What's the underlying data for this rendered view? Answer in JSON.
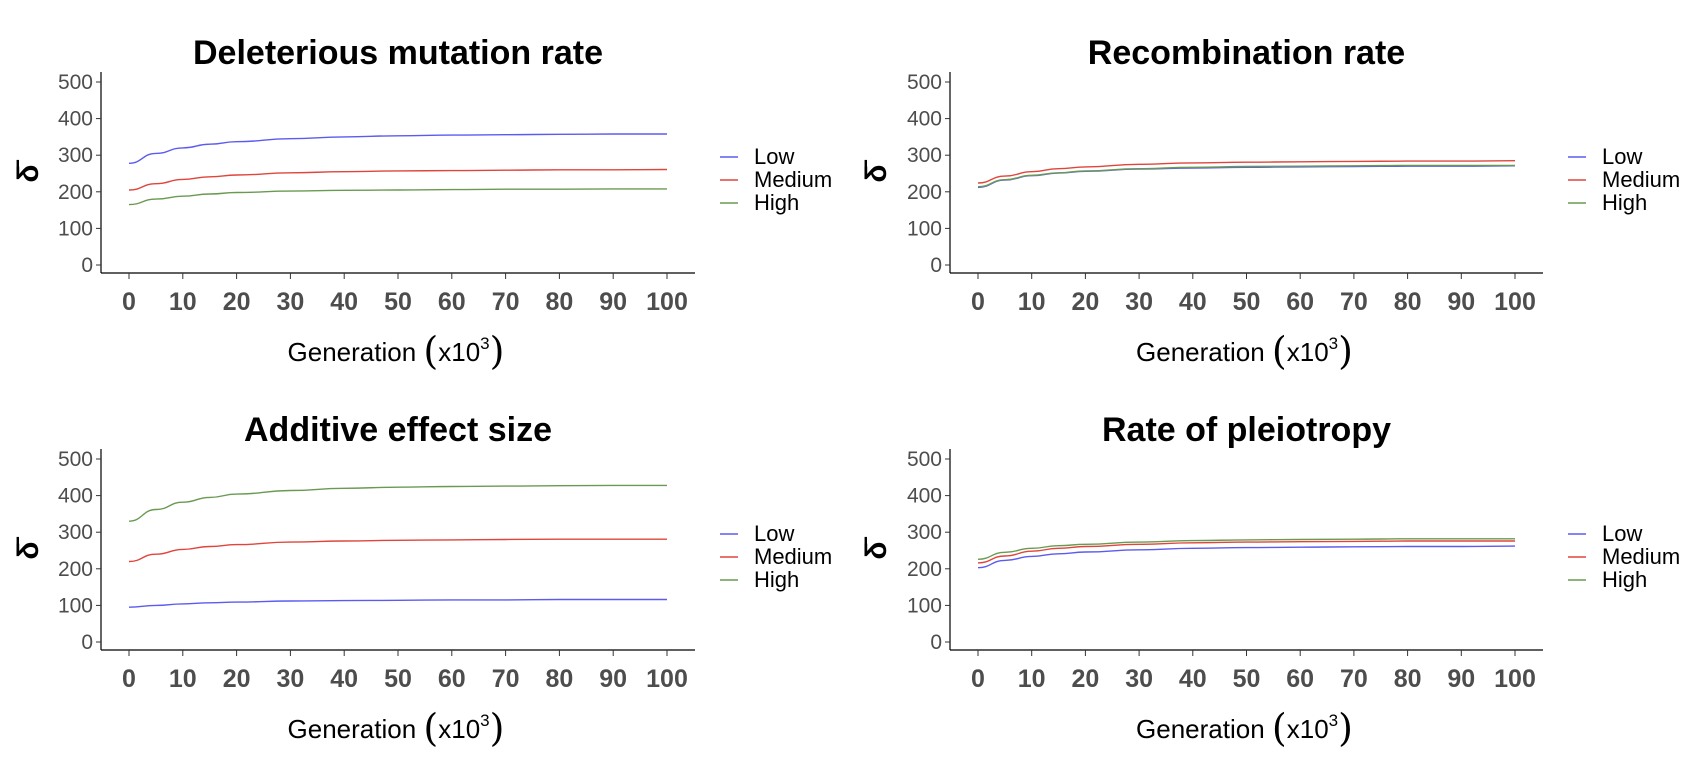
{
  "chart_data": [
    {
      "type": "line",
      "title": "Deleterious mutation rate",
      "xlabel": "Generation",
      "xlabel_unit": "x10",
      "xlabel_exp": "3",
      "ylabel": "δ̄",
      "xlim": [
        0,
        100
      ],
      "ylim": [
        0,
        500
      ],
      "x_ticks": [
        "0",
        "10",
        "20",
        "30",
        "40",
        "50",
        "60",
        "70",
        "80",
        "90",
        "100"
      ],
      "y_ticks": [
        "0",
        "100",
        "200",
        "300",
        "400",
        "500"
      ],
      "x": [
        0,
        5,
        10,
        15,
        20,
        30,
        40,
        50,
        60,
        70,
        80,
        90,
        100
      ],
      "legend_position": "right",
      "series": [
        {
          "name": "Low",
          "color": "#5b5bf0",
          "values": [
            278,
            305,
            320,
            330,
            337,
            345,
            350,
            353,
            355,
            356,
            357,
            358,
            358
          ]
        },
        {
          "name": "Medium",
          "color": "#e0453c",
          "values": [
            205,
            222,
            234,
            241,
            246,
            252,
            255,
            257,
            258,
            259,
            260,
            260,
            261
          ]
        },
        {
          "name": "High",
          "color": "#6a9a52",
          "values": [
            165,
            180,
            188,
            194,
            198,
            202,
            204,
            205,
            206,
            207,
            207,
            208,
            208
          ]
        }
      ]
    },
    {
      "type": "line",
      "title": "Recombination rate",
      "xlabel": "Generation",
      "xlabel_unit": "x10",
      "xlabel_exp": "3",
      "ylabel": "δ̄",
      "xlim": [
        0,
        100
      ],
      "ylim": [
        0,
        500
      ],
      "x_ticks": [
        "0",
        "10",
        "20",
        "30",
        "40",
        "50",
        "60",
        "70",
        "80",
        "90",
        "100"
      ],
      "y_ticks": [
        "0",
        "100",
        "200",
        "300",
        "400",
        "500"
      ],
      "x": [
        0,
        5,
        10,
        15,
        20,
        30,
        40,
        50,
        60,
        70,
        80,
        90,
        100
      ],
      "legend_position": "right",
      "series": [
        {
          "name": "Low",
          "color": "#5b5bf0",
          "values": [
            212,
            232,
            244,
            251,
            256,
            262,
            265,
            267,
            268,
            269,
            270,
            270,
            271
          ]
        },
        {
          "name": "Medium",
          "color": "#e0453c",
          "values": [
            224,
            243,
            255,
            263,
            268,
            275,
            279,
            281,
            282,
            283,
            284,
            284,
            285
          ]
        },
        {
          "name": "High",
          "color": "#6a9a52",
          "values": [
            214,
            233,
            245,
            252,
            257,
            263,
            267,
            269,
            270,
            271,
            272,
            272,
            272
          ]
        }
      ]
    },
    {
      "type": "line",
      "title": "Additive effect size",
      "xlabel": "Generation",
      "xlabel_unit": "x10",
      "xlabel_exp": "3",
      "ylabel": "δ̄",
      "xlim": [
        0,
        100
      ],
      "ylim": [
        0,
        500
      ],
      "x_ticks": [
        "0",
        "10",
        "20",
        "30",
        "40",
        "50",
        "60",
        "70",
        "80",
        "90",
        "100"
      ],
      "y_ticks": [
        "0",
        "100",
        "200",
        "300",
        "400",
        "500"
      ],
      "x": [
        0,
        5,
        10,
        15,
        20,
        30,
        40,
        50,
        60,
        70,
        80,
        90,
        100
      ],
      "legend_position": "right",
      "series": [
        {
          "name": "Low",
          "color": "#5b5bf0",
          "values": [
            95,
            100,
            104,
            107,
            109,
            112,
            113,
            114,
            115,
            115,
            116,
            116,
            116
          ]
        },
        {
          "name": "Medium",
          "color": "#e0453c",
          "values": [
            220,
            240,
            253,
            261,
            266,
            273,
            276,
            278,
            279,
            280,
            281,
            281,
            281
          ]
        },
        {
          "name": "High",
          "color": "#6a9a52",
          "values": [
            330,
            362,
            382,
            395,
            404,
            414,
            420,
            423,
            425,
            426,
            427,
            428,
            428
          ]
        }
      ]
    },
    {
      "type": "line",
      "title": "Rate of pleiotropy",
      "xlabel": "Generation",
      "xlabel_unit": "x10",
      "xlabel_exp": "3",
      "ylabel": "δ̄",
      "xlim": [
        0,
        100
      ],
      "ylim": [
        0,
        500
      ],
      "x_ticks": [
        "0",
        "10",
        "20",
        "30",
        "40",
        "50",
        "60",
        "70",
        "80",
        "90",
        "100"
      ],
      "y_ticks": [
        "0",
        "100",
        "200",
        "300",
        "400",
        "500"
      ],
      "x": [
        0,
        5,
        10,
        15,
        20,
        30,
        40,
        50,
        60,
        70,
        80,
        90,
        100
      ],
      "legend_position": "right",
      "series": [
        {
          "name": "Low",
          "color": "#5b5bf0",
          "values": [
            203,
            223,
            234,
            241,
            246,
            252,
            256,
            258,
            259,
            260,
            261,
            261,
            262
          ]
        },
        {
          "name": "Medium",
          "color": "#e0453c",
          "values": [
            216,
            235,
            248,
            256,
            261,
            267,
            271,
            273,
            274,
            275,
            276,
            276,
            276
          ]
        },
        {
          "name": "High",
          "color": "#6a9a52",
          "values": [
            226,
            245,
            256,
            263,
            267,
            273,
            277,
            279,
            280,
            281,
            282,
            282,
            282
          ]
        }
      ]
    }
  ]
}
